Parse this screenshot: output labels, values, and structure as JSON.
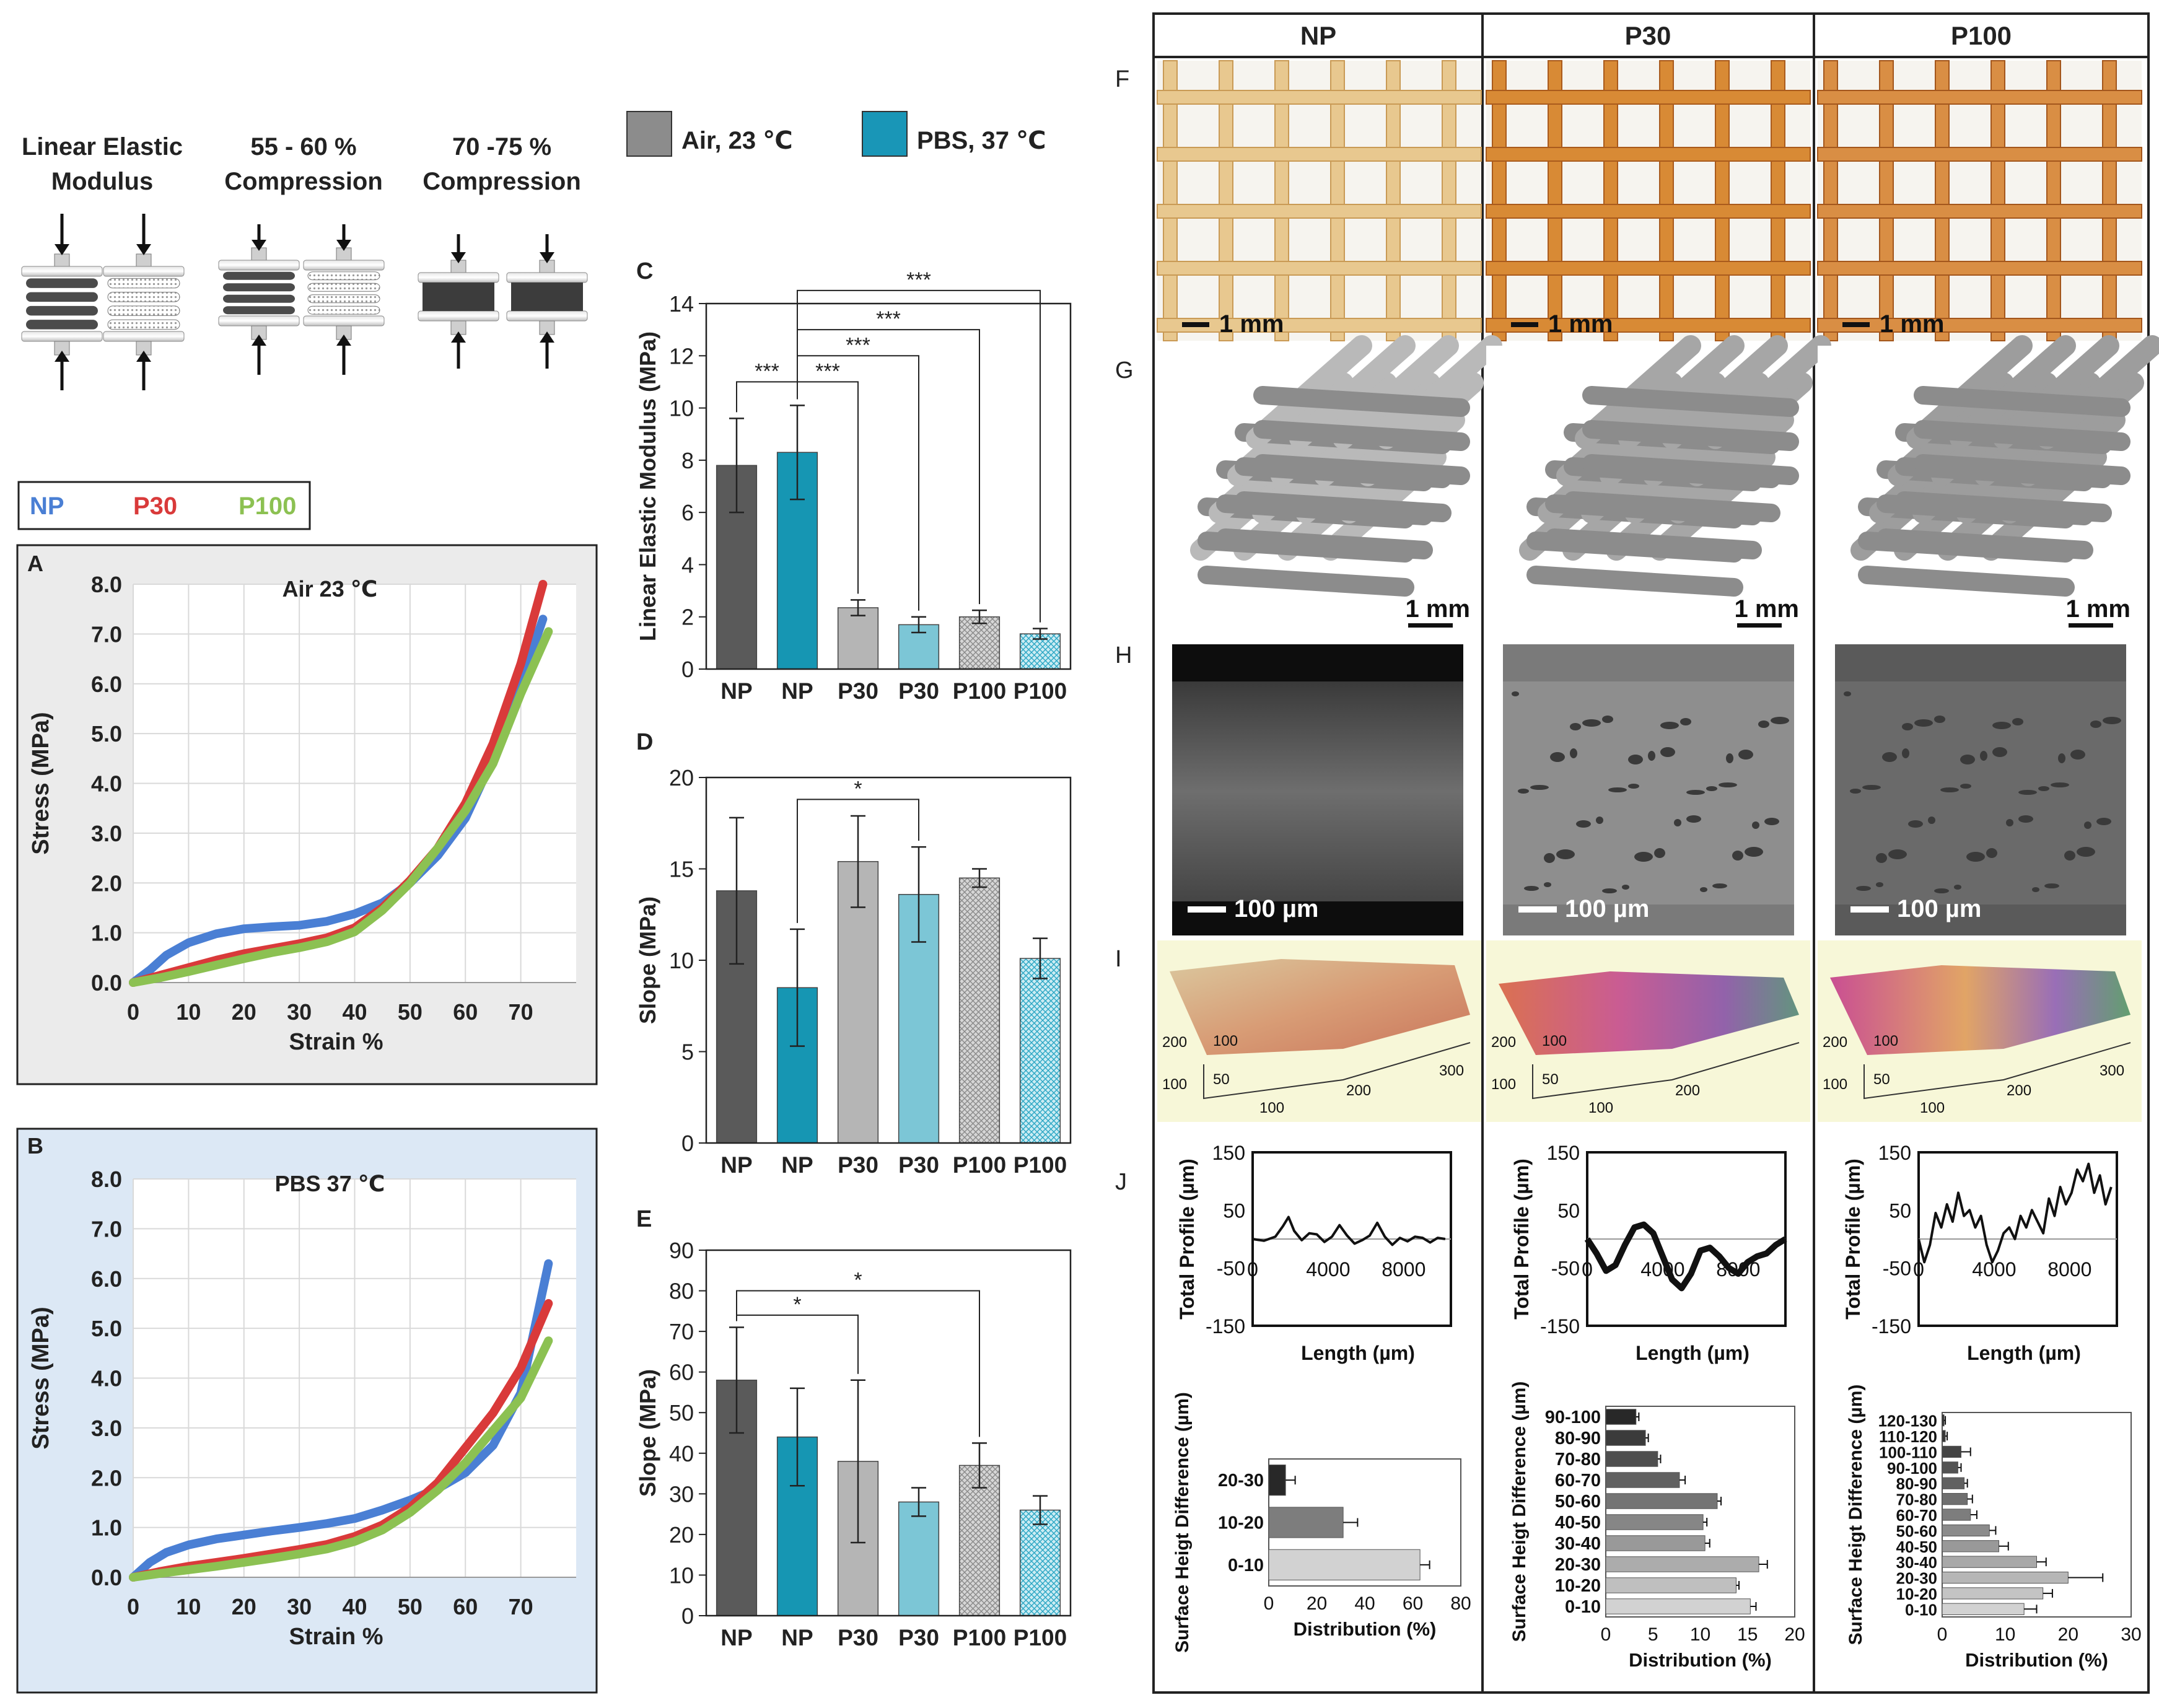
{
  "schematic": {
    "labels": [
      "Linear Elastic",
      "Modulus",
      "55 - 60 %",
      "Compression",
      "70 -75 %",
      "Compression"
    ]
  },
  "legend_condition": {
    "air": "Air, 23 ℃",
    "pbs": "PBS, 37 ℃",
    "air_color": "#8c8c8c",
    "pbs_color": "#1996b7"
  },
  "legend_material": {
    "np": "NP",
    "p30": "P30",
    "p100": "P100",
    "np_color": "#4a7fd4",
    "p30_color": "#d93a3a",
    "p100_color": "#8cc152"
  },
  "panel_letters": {
    "A": "A",
    "B": "B",
    "C": "C",
    "D": "D",
    "E": "E",
    "F": "F",
    "G": "G",
    "H": "H",
    "I": "I",
    "J": "J"
  },
  "grid_header": {
    "np": "NP",
    "p30": "P30",
    "p100": "P100"
  },
  "scalebars": {
    "mm": "1 mm",
    "um": "100 µm"
  },
  "profilometry_axes": {
    "np": {
      "y1": "200",
      "y2": "100",
      "z1": "100",
      "z2": "50",
      "x1": "100",
      "x2": "200",
      "x3": "300"
    },
    "p30": {
      "y1": "200",
      "y2": "100",
      "z1": "100",
      "z2": "50",
      "x1": "100",
      "x2": "200"
    },
    "p100": {
      "y1": "200",
      "y2": "100",
      "z1": "100",
      "z2": "50",
      "x1": "100",
      "x2": "200",
      "x3": "300"
    }
  },
  "chart_data": [
    {
      "id": "A",
      "type": "line",
      "title": "Air 23 ℃",
      "xlabel": "Strain %",
      "ylabel": "Stress (MPa)",
      "xlim": [
        0,
        80
      ],
      "ylim": [
        0,
        8
      ],
      "xticks": [
        "0",
        "10",
        "20",
        "30",
        "40",
        "50",
        "60",
        "70"
      ],
      "yticks": [
        "0.0",
        "1.0",
        "2.0",
        "3.0",
        "4.0",
        "5.0",
        "6.0",
        "7.0",
        "8.0"
      ],
      "series": [
        {
          "name": "NP",
          "color": "#4a7fd4",
          "x": [
            0,
            3,
            6,
            10,
            15,
            20,
            25,
            30,
            35,
            40,
            45,
            50,
            55,
            60,
            65,
            70,
            74
          ],
          "y": [
            0,
            0.25,
            0.55,
            0.8,
            0.98,
            1.08,
            1.12,
            1.15,
            1.23,
            1.38,
            1.6,
            2.0,
            2.55,
            3.3,
            4.5,
            6.0,
            7.3
          ]
        },
        {
          "name": "P30",
          "color": "#d93a3a",
          "x": [
            0,
            5,
            10,
            15,
            20,
            25,
            30,
            35,
            40,
            45,
            50,
            55,
            60,
            65,
            70,
            74
          ],
          "y": [
            0,
            0.15,
            0.3,
            0.45,
            0.58,
            0.68,
            0.78,
            0.9,
            1.1,
            1.5,
            2.05,
            2.7,
            3.6,
            4.8,
            6.4,
            8.0
          ]
        },
        {
          "name": "P100",
          "color": "#8cc152",
          "x": [
            0,
            5,
            10,
            15,
            20,
            25,
            30,
            35,
            40,
            45,
            50,
            55,
            60,
            65,
            70,
            75
          ],
          "y": [
            0,
            0.1,
            0.22,
            0.35,
            0.48,
            0.6,
            0.7,
            0.82,
            1.02,
            1.45,
            2.0,
            2.7,
            3.45,
            4.4,
            5.8,
            7.05
          ]
        }
      ]
    },
    {
      "id": "B",
      "type": "line",
      "title": "PBS 37 ℃",
      "xlabel": "Strain %",
      "ylabel": "Stress (MPa)",
      "xlim": [
        0,
        80
      ],
      "ylim": [
        0,
        8
      ],
      "xticks": [
        "0",
        "10",
        "20",
        "30",
        "40",
        "50",
        "60",
        "70"
      ],
      "yticks": [
        "0.0",
        "1.0",
        "2.0",
        "3.0",
        "4.0",
        "5.0",
        "6.0",
        "7.0",
        "8.0"
      ],
      "series": [
        {
          "name": "NP",
          "color": "#4a7fd4",
          "x": [
            0,
            3,
            6,
            10,
            15,
            20,
            25,
            30,
            35,
            40,
            45,
            50,
            55,
            60,
            65,
            70,
            75
          ],
          "y": [
            0,
            0.3,
            0.5,
            0.65,
            0.77,
            0.85,
            0.93,
            1.0,
            1.08,
            1.18,
            1.35,
            1.55,
            1.78,
            2.1,
            2.65,
            3.7,
            6.3
          ]
        },
        {
          "name": "P30",
          "color": "#d93a3a",
          "x": [
            0,
            5,
            10,
            15,
            20,
            25,
            30,
            35,
            40,
            45,
            50,
            55,
            60,
            65,
            70,
            75
          ],
          "y": [
            0,
            0.12,
            0.22,
            0.3,
            0.38,
            0.47,
            0.56,
            0.66,
            0.82,
            1.05,
            1.4,
            1.9,
            2.6,
            3.3,
            4.2,
            5.5
          ]
        },
        {
          "name": "P100",
          "color": "#8cc152",
          "x": [
            0,
            5,
            10,
            15,
            20,
            25,
            30,
            35,
            40,
            45,
            50,
            55,
            60,
            65,
            70,
            75
          ],
          "y": [
            0,
            0.08,
            0.15,
            0.22,
            0.3,
            0.38,
            0.47,
            0.57,
            0.72,
            0.95,
            1.3,
            1.75,
            2.3,
            2.95,
            3.6,
            4.75
          ]
        }
      ]
    },
    {
      "id": "C",
      "type": "bar",
      "xlabel": "",
      "ylabel": "Linear Elastic Modulus (MPa)",
      "ylim": [
        0,
        14
      ],
      "yticks": [
        "0",
        "2",
        "4",
        "6",
        "8",
        "10",
        "12",
        "14"
      ],
      "categories": [
        "NP",
        "NP",
        "P30",
        "P30",
        "P100",
        "P100"
      ],
      "conditions": [
        "air",
        "pbs",
        "air",
        "pbs",
        "air",
        "pbs"
      ],
      "values": [
        7.8,
        8.3,
        2.35,
        1.7,
        2.0,
        1.35
      ],
      "errors": [
        1.8,
        1.8,
        0.3,
        0.3,
        0.25,
        0.2
      ],
      "significance": [
        {
          "from": 0,
          "to": 1,
          "label": "***",
          "y": 11.0
        },
        {
          "from": 1,
          "to": 2,
          "label": "***",
          "y": 11.0
        },
        {
          "from": 1,
          "to": 3,
          "label": "***",
          "y": 12.0
        },
        {
          "from": 1,
          "to": 4,
          "label": "***",
          "y": 13.0
        },
        {
          "from": 1,
          "to": 5,
          "label": "***",
          "y": 14.5
        }
      ]
    },
    {
      "id": "D",
      "type": "bar",
      "xlabel": "",
      "ylabel": "Slope (MPa)",
      "ylim": [
        0,
        20
      ],
      "yticks": [
        "0",
        "5",
        "10",
        "15",
        "20"
      ],
      "categories": [
        "NP",
        "NP",
        "P30",
        "P30",
        "P100",
        "P100"
      ],
      "conditions": [
        "air",
        "pbs",
        "air",
        "pbs",
        "air",
        "pbs"
      ],
      "values": [
        13.8,
        8.5,
        15.4,
        13.6,
        14.5,
        10.1
      ],
      "errors": [
        4.0,
        3.2,
        2.5,
        2.6,
        0.5,
        1.1
      ],
      "significance": [
        {
          "from": 1,
          "to": 3,
          "label": "*",
          "y": 18.8
        }
      ]
    },
    {
      "id": "E",
      "type": "bar",
      "xlabel": "",
      "ylabel": "Slope (MPa)",
      "ylim": [
        0,
        90
      ],
      "yticks": [
        "0",
        "10",
        "20",
        "30",
        "40",
        "50",
        "60",
        "70",
        "80",
        "90"
      ],
      "categories": [
        "NP",
        "NP",
        "P30",
        "P30",
        "P100",
        "P100"
      ],
      "conditions": [
        "air",
        "pbs",
        "air",
        "pbs",
        "air",
        "pbs"
      ],
      "values": [
        58,
        44,
        38,
        28,
        37,
        26
      ],
      "errors": [
        13,
        12,
        20,
        3.5,
        5.5,
        3.5
      ],
      "significance": [
        {
          "from": 0,
          "to": 2,
          "label": "*",
          "y": 74
        },
        {
          "from": 0,
          "to": 4,
          "label": "*",
          "y": 80
        }
      ]
    },
    {
      "id": "J-NP-profile",
      "type": "line",
      "xlabel": "Length (µm)",
      "ylabel": "Total Profile (µm)",
      "xlim": [
        0,
        10500
      ],
      "ylim": [
        -150,
        150
      ],
      "xticks": [
        "0",
        "4000",
        "8000"
      ],
      "yticks": [
        "150",
        "50",
        "-50",
        "-150"
      ],
      "series": [
        {
          "name": "NP",
          "x": [
            0,
            600,
            1200,
            1600,
            1900,
            2200,
            2600,
            3000,
            3400,
            3800,
            4200,
            4600,
            5000,
            5400,
            5800,
            6200,
            6600,
            7000,
            7400,
            7800,
            8200,
            8600,
            9000,
            9400,
            9800,
            10200
          ],
          "y": [
            0,
            -3,
            4,
            22,
            38,
            14,
            -2,
            10,
            8,
            -5,
            4,
            24,
            6,
            -8,
            -2,
            6,
            28,
            4,
            -10,
            2,
            -4,
            4,
            2,
            -6,
            2,
            0
          ]
        }
      ]
    },
    {
      "id": "J-P30-profile",
      "type": "line",
      "xlabel": "Length (µm)",
      "ylabel": "Total Profile (µm)",
      "xlim": [
        0,
        10500
      ],
      "ylim": [
        -150,
        150
      ],
      "xticks": [
        "0",
        "4000",
        "8000"
      ],
      "yticks": [
        "150",
        "50",
        "-50",
        "-150"
      ],
      "series": [
        {
          "name": "P30",
          "x": [
            0,
            500,
            1000,
            1500,
            2000,
            2500,
            3000,
            3500,
            4000,
            4500,
            5000,
            5500,
            6000,
            6500,
            7000,
            7500,
            8000,
            8500,
            9000,
            9500,
            10000,
            10500
          ],
          "y": [
            0,
            -25,
            -55,
            -45,
            -10,
            20,
            25,
            10,
            -30,
            -70,
            -85,
            -60,
            -20,
            -15,
            -30,
            -50,
            -60,
            -40,
            -30,
            -25,
            -10,
            0
          ]
        }
      ]
    },
    {
      "id": "J-P100-profile",
      "type": "line",
      "xlabel": "Length (µm)",
      "ylabel": "Total Profile (µm)",
      "xlim": [
        0,
        10500
      ],
      "ylim": [
        -150,
        150
      ],
      "xticks": [
        "0",
        "4000",
        "8000"
      ],
      "yticks": [
        "150",
        "50",
        "-50",
        "-150"
      ],
      "series": [
        {
          "name": "P100",
          "x": [
            0,
            300,
            600,
            900,
            1200,
            1500,
            1800,
            2100,
            2400,
            2700,
            3000,
            3300,
            3600,
            3900,
            4200,
            4500,
            4800,
            5100,
            5400,
            5700,
            6000,
            6300,
            6600,
            6900,
            7200,
            7500,
            7800,
            8100,
            8400,
            8700,
            9000,
            9300,
            9600,
            9900,
            10200
          ],
          "y": [
            0,
            -40,
            -10,
            45,
            20,
            60,
            30,
            80,
            40,
            50,
            20,
            40,
            -10,
            -40,
            -20,
            10,
            20,
            0,
            40,
            20,
            50,
            30,
            10,
            70,
            40,
            90,
            60,
            80,
            120,
            100,
            130,
            80,
            110,
            60,
            90
          ]
        }
      ]
    },
    {
      "id": "J-NP-dist",
      "type": "bar",
      "orientation": "horizontal",
      "xlabel": "Distribution (%)",
      "ylabel": "Surface Heigt Difference (µm)",
      "xlim": [
        0,
        80
      ],
      "xticks": [
        "0",
        "20",
        "40",
        "60",
        "80"
      ],
      "categories": [
        "20-30",
        "10-20",
        "0-10"
      ],
      "values": [
        7,
        31,
        63
      ],
      "errors": [
        4,
        6,
        4
      ]
    },
    {
      "id": "J-P30-dist",
      "type": "bar",
      "orientation": "horizontal",
      "xlabel": "Distribution (%)",
      "ylabel": "Surface Heigt Difference (µm)",
      "xlim": [
        0,
        20
      ],
      "xticks": [
        "0",
        "5",
        "10",
        "15",
        "20"
      ],
      "categories": [
        "90-100",
        "80-90",
        "70-80",
        "60-70",
        "50-60",
        "40-50",
        "30-40",
        "20-30",
        "10-20",
        "0-10"
      ],
      "values": [
        3.2,
        4.2,
        5.5,
        7.8,
        11.8,
        10.3,
        10.5,
        16.2,
        13.8,
        15.3
      ],
      "errors": [
        0.3,
        0.3,
        0.3,
        0.6,
        0.4,
        0.4,
        0.5,
        0.9,
        0.3,
        0.6
      ]
    },
    {
      "id": "J-P100-dist",
      "type": "bar",
      "orientation": "horizontal",
      "xlabel": "Distribution (%)",
      "ylabel": "Surface Heigt Difference (µm)",
      "xlim": [
        0,
        30
      ],
      "xticks": [
        "0",
        "10",
        "20",
        "30"
      ],
      "categories": [
        "120-130",
        "110-120",
        "100-110",
        "90-100",
        "80-90",
        "70-80",
        "60-70",
        "50-60",
        "40-50",
        "30-40",
        "20-30",
        "10-20",
        "0-10"
      ],
      "values": [
        0.3,
        0.5,
        3.0,
        2.5,
        3.5,
        4.0,
        4.5,
        7.5,
        9.0,
        15.0,
        20.0,
        16.0,
        13.0
      ],
      "errors": [
        0.2,
        0.3,
        1.5,
        0.5,
        0.5,
        0.8,
        1.0,
        1.0,
        1.5,
        1.5,
        5.5,
        1.5,
        2.0
      ]
    }
  ]
}
